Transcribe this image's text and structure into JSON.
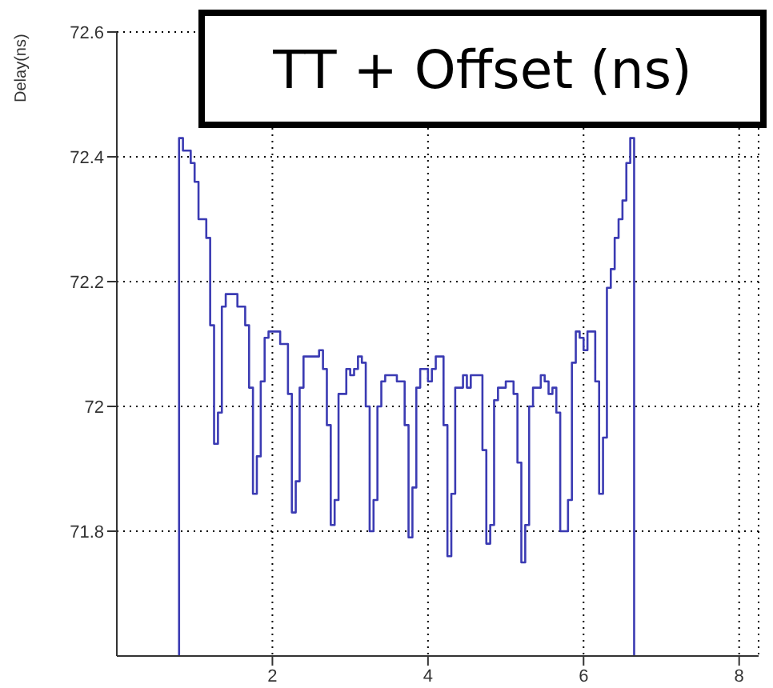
{
  "chart_data": {
    "type": "histogram",
    "title": "TT + Offset (ns)",
    "ylabel": "Delay(ns)",
    "bins": [
      0.8,
      0.85,
      0.9,
      0.95,
      1.0,
      1.05,
      1.1,
      1.15,
      1.2,
      1.25,
      1.3,
      1.35,
      1.4,
      1.45,
      1.5,
      1.55,
      1.6,
      1.65,
      1.7,
      1.75,
      1.8,
      1.85,
      1.9,
      1.95,
      2.0,
      2.05,
      2.1,
      2.15,
      2.2,
      2.25,
      2.3,
      2.35,
      2.4,
      2.45,
      2.5,
      2.55,
      2.6,
      2.65,
      2.7,
      2.75,
      2.8,
      2.85,
      2.9,
      2.95,
      3.0,
      3.05,
      3.1,
      3.15,
      3.2,
      3.25,
      3.3,
      3.35,
      3.4,
      3.45,
      3.5,
      3.55,
      3.6,
      3.65,
      3.7,
      3.75,
      3.8,
      3.85,
      3.9,
      3.95,
      4.0,
      4.05,
      4.1,
      4.15,
      4.2,
      4.25,
      4.3,
      4.35,
      4.4,
      4.45,
      4.5,
      4.55,
      4.6,
      4.65,
      4.7,
      4.75,
      4.8,
      4.85,
      4.9,
      4.95,
      5.0,
      5.05,
      5.1,
      5.15,
      5.2,
      5.25,
      5.3,
      5.35,
      5.4,
      5.45,
      5.5,
      5.55,
      5.6,
      5.65,
      5.7,
      5.75,
      5.8,
      5.85,
      5.9,
      5.95,
      6.0,
      6.05,
      6.1,
      6.15,
      6.2,
      6.25,
      6.3,
      6.35,
      6.4,
      6.45,
      6.5,
      6.55,
      6.6,
      6.65
    ],
    "values": [
      72.43,
      72.41,
      72.41,
      72.39,
      72.36,
      72.3,
      72.3,
      72.27,
      72.13,
      71.94,
      71.99,
      72.16,
      72.18,
      72.18,
      72.18,
      72.16,
      72.16,
      72.13,
      72.03,
      71.86,
      71.92,
      72.04,
      72.11,
      72.12,
      72.12,
      72.12,
      72.1,
      72.1,
      72.02,
      71.83,
      71.88,
      72.03,
      72.08,
      72.08,
      72.08,
      72.08,
      72.09,
      72.06,
      71.97,
      71.81,
      71.85,
      72.02,
      72.02,
      72.06,
      72.05,
      72.06,
      72.08,
      72.07,
      72.0,
      71.8,
      71.85,
      72.0,
      72.04,
      72.05,
      72.05,
      72.05,
      72.04,
      72.04,
      71.97,
      71.79,
      71.87,
      72.03,
      72.06,
      72.06,
      72.04,
      72.06,
      72.08,
      72.08,
      71.97,
      71.76,
      71.86,
      72.03,
      72.03,
      72.05,
      72.03,
      72.05,
      72.05,
      72.05,
      71.93,
      71.78,
      71.81,
      72.01,
      72.03,
      72.03,
      72.04,
      72.04,
      72.02,
      71.91,
      71.75,
      71.81,
      72.0,
      72.03,
      72.03,
      72.05,
      72.04,
      72.02,
      72.03,
      71.99,
      71.8,
      71.8,
      71.85,
      72.07,
      72.12,
      72.11,
      72.09,
      72.12,
      72.12,
      72.04,
      71.86,
      71.95,
      72.19,
      72.22,
      72.27,
      72.3,
      72.33,
      72.39,
      72.43
    ],
    "color": "#3b3bb3",
    "xlim": [
      0,
      8.25
    ],
    "ylim": [
      71.6,
      72.6
    ],
    "xticks": [
      2,
      4,
      6,
      8
    ],
    "yticks": [
      71.8,
      72,
      72.2,
      72.4,
      72.6
    ],
    "grid": true
  }
}
